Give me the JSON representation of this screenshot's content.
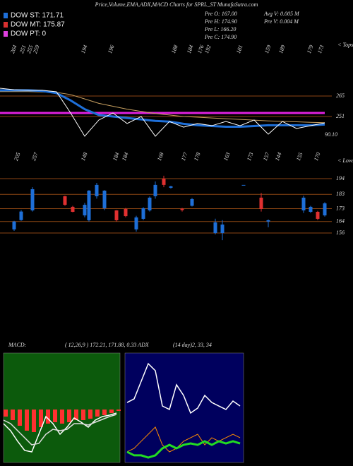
{
  "header": {
    "title": "Price,Volume,EMA,ADX,MACD Charts for SPRL_ST MunafaSutra.com"
  },
  "legend": [
    {
      "label": "DOW ST: 171.71",
      "color": "#1e6fd8"
    },
    {
      "label": "DOW MT: 175.87",
      "color": "#d83030"
    },
    {
      "label": "DOW PT: 0",
      "color": "#e040e0"
    }
  ],
  "info": {
    "left": [
      "Pre  O: 167.00",
      "Pre  H: 174.90",
      "Pre  L: 166.20",
      "Pre  C: 174.90"
    ],
    "right": [
      "Avg V: 0.005 M",
      "Pre  V: 0.004 M"
    ]
  },
  "price_panel": {
    "tops_label": "< Tops",
    "top_labels": [
      264,
      251,
      255,
      259,
      194,
      196,
      188,
      184,
      176,
      192,
      181,
      159,
      189,
      179,
      173
    ],
    "ylim": [
      234.1,
      284.8
    ],
    "axis_labels": [
      265,
      251
    ],
    "last_label": "90.10",
    "level_color": "#8b4513",
    "pt_line_color": "#e020e0",
    "series": [
      {
        "color": "#c8a060",
        "width": 1,
        "values": [
          268,
          268,
          268,
          267.8,
          267.5,
          266,
          263,
          260,
          258,
          256,
          254.5,
          253,
          252,
          251,
          250.5,
          250,
          249.5,
          249,
          248.5,
          248,
          247.7,
          247.4,
          247,
          246.8
        ]
      },
      {
        "color": "#1e6fd8",
        "width": 3,
        "values": [
          268.9,
          268.9,
          268.9,
          268.5,
          267,
          262,
          256,
          252,
          251,
          250,
          249,
          248,
          247.5,
          246,
          245,
          244.5,
          244,
          244,
          244.5,
          245,
          245,
          245,
          245,
          245.5
        ]
      },
      {
        "color": "#ffffff",
        "width": 1,
        "values": [
          270.3,
          269.3,
          268.9,
          268.9,
          267.9,
          253.4,
          237.5,
          248.6,
          253.4,
          246.2,
          251,
          237.5,
          247.6,
          243.7,
          246.2,
          244.7,
          247.6,
          244.7,
          248.6,
          238.9,
          247.6,
          242.8,
          244.7,
          246.6
        ]
      }
    ]
  },
  "candle_panel": {
    "lows_label": "< Lows",
    "low_labels": [
      205,
      257,
      148,
      184,
      184,
      168,
      177,
      178,
      163,
      173,
      157,
      144,
      155,
      170
    ],
    "ylim": [
      148.6,
      200.4
    ],
    "axis_labels": [
      194,
      183,
      173,
      164,
      156
    ],
    "up_color": "#1e6fd8",
    "down_color": "#e03030",
    "candles": [
      {
        "open": 158.5,
        "high": 164.5,
        "low": 157.5,
        "close": 164
      },
      {
        "open": 165,
        "high": 172,
        "low": 164.5,
        "close": 171
      },
      {
        "open": 171.8,
        "high": 188,
        "low": 171,
        "close": 186.6
      },
      {
        "open": 181.7,
        "high": 182,
        "low": 175,
        "close": 175.7
      },
      {
        "open": 174.3,
        "high": 175,
        "low": 170.5,
        "close": 170.8
      },
      {
        "open": 168.3,
        "high": 177,
        "low": 167,
        "close": 175.7
      },
      {
        "open": 164.9,
        "high": 186,
        "low": 164,
        "close": 185.6
      },
      {
        "open": 181.7,
        "high": 191,
        "low": 180,
        "close": 189.6
      },
      {
        "open": 173.3,
        "high": 186,
        "low": 172,
        "close": 185.6
      },
      {
        "open": 171.8,
        "high": 172,
        "low": 164,
        "close": 164.9
      },
      {
        "open": 172.8,
        "high": 173.5,
        "low": 167,
        "close": 167.8
      },
      {
        "open": 158.5,
        "high": 168,
        "low": 157,
        "close": 166.9
      },
      {
        "open": 165.9,
        "high": 174,
        "low": 165,
        "close": 173.3
      },
      {
        "open": 171.8,
        "high": 181.5,
        "low": 171,
        "close": 180.7
      },
      {
        "open": 181.7,
        "high": 192,
        "low": 180,
        "close": 189.6
      },
      {
        "open": 194,
        "high": 196,
        "low": 188,
        "close": 189.6
      },
      {
        "open": 187.6,
        "high": 189,
        "low": 187,
        "close": 188.6
      },
      {
        "open": 173,
        "high": 173.5,
        "low": 171,
        "close": 172
      },
      {
        "open": 175,
        "high": 180.5,
        "low": 174.5,
        "close": 179.7
      },
      {
        "open": 156,
        "high": 166,
        "low": 155,
        "close": 163.4
      },
      {
        "open": 156,
        "high": 165,
        "low": 151,
        "close": 161.9
      },
      {
        "open": 189.6,
        "high": 189.6,
        "low": 189.6,
        "close": 189.6
      },
      {
        "open": 180.7,
        "high": 184,
        "low": 171,
        "close": 172.8
      },
      {
        "open": 164,
        "high": 165.5,
        "low": 160,
        "close": 164.9
      },
      {
        "open": 171.8,
        "high": 182,
        "low": 170,
        "close": 180.7
      },
      {
        "open": 170.8,
        "high": 175,
        "low": 170,
        "close": 174.3
      },
      {
        "open": 170.8,
        "high": 171.5,
        "low": 165,
        "close": 165.9
      },
      {
        "open": 168.3,
        "high": 177.5,
        "low": 167.5,
        "close": 176.7
      }
    ]
  },
  "indicators": {
    "macd_label": "MACD:",
    "macd_params": "( 12,26,9 ) 172.21,  171.88,  0.33  ADX",
    "adx_params": "(14  day)2,  33,  34",
    "macd": {
      "ylim": [
        -37.5,
        40
      ],
      "background": "#0c5a0c",
      "bar_color": "#ff3030",
      "bars": [
        -5,
        -7.5,
        -11.5,
        -15,
        -16,
        -12.5,
        -10,
        -9,
        -10,
        -9,
        -7.5,
        -7.5,
        -6.5,
        -5,
        -4,
        -2.5,
        -1
      ],
      "lines": [
        {
          "color": "#ffffff",
          "values": [
            -10,
            -15,
            -22.5,
            -29,
            -30,
            -17.5,
            -5,
            -10,
            -17.5,
            -12.5,
            -6,
            -9,
            -12.5,
            -7.5,
            -5,
            -4,
            -2.5
          ]
        },
        {
          "color": "#dddddd",
          "values": [
            -7.5,
            -10,
            -15,
            -20,
            -25,
            -24,
            -17.5,
            -14,
            -15,
            -14,
            -10,
            -10,
            -11,
            -9,
            -7,
            -5,
            -3.5
          ]
        }
      ]
    },
    "adx": {
      "ylim": [
        0,
        100
      ],
      "background": "#00005e",
      "lines": [
        {
          "color": "#ffffff",
          "width": 1.5,
          "values": [
            54.8,
            58.1,
            74.2,
            90.3,
            83.9,
            51.6,
            48.4,
            71,
            61.3,
            45.2,
            49.7,
            61.3,
            54.8,
            51.6,
            48.4,
            56.1,
            51.6
          ]
        },
        {
          "color": "#ff8c00",
          "width": 1,
          "values": [
            9.7,
            12.9,
            19.4,
            25.8,
            32.3,
            16.1,
            9.7,
            12.9,
            19.4,
            22.6,
            25.8,
            16.1,
            22.6,
            19.4,
            22.6,
            25.8,
            22.6
          ]
        },
        {
          "color": "#22dd22",
          "width": 3,
          "values": [
            9.7,
            6.5,
            6.5,
            4.5,
            6.5,
            12.9,
            16.1,
            12.9,
            16.1,
            17.4,
            16.1,
            19.4,
            16.1,
            19.4,
            17.4,
            19.4,
            17.4
          ]
        }
      ]
    }
  }
}
